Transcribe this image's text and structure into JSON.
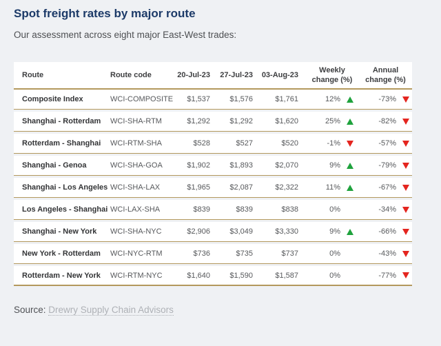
{
  "page": {
    "title": "Spot freight rates by major route",
    "subtitle": "Our assessment across eight major East-West trades:",
    "source_label": "Source:",
    "source_link": "Drewry Supply Chain Advisors"
  },
  "colors": {
    "title_navy": "#1c3a68",
    "gold_border": "#b3985c",
    "trend_up_green": "#1fa23d",
    "trend_down_red": "#e4251f",
    "page_background": "#eff1f4"
  },
  "chart_data": {
    "type": "table",
    "title": "Spot freight rates by major route",
    "columns": [
      "Route",
      "Route code",
      "20-Jul-23",
      "27-Jul-23",
      "03-Aug-23",
      "Weekly change (%)",
      "Annual change (%)"
    ],
    "rows": [
      {
        "route": "Composite Index",
        "code": "WCI-COMPOSITE",
        "jul20": "$1,537",
        "jul27": "$1,576",
        "aug03": "$1,761",
        "weekly": "12%",
        "weekly_trend": "up",
        "annual": "-73%",
        "annual_trend": "down"
      },
      {
        "route": "Shanghai - Rotterdam",
        "code": "WCI-SHA-RTM",
        "jul20": "$1,292",
        "jul27": "$1,292",
        "aug03": "$1,620",
        "weekly": "25%",
        "weekly_trend": "up",
        "annual": "-82%",
        "annual_trend": "down"
      },
      {
        "route": "Rotterdam - Shanghai",
        "code": "WCI-RTM-SHA",
        "jul20": "$528",
        "jul27": "$527",
        "aug03": "$520",
        "weekly": "-1%",
        "weekly_trend": "down",
        "annual": "-57%",
        "annual_trend": "down"
      },
      {
        "route": "Shanghai - Genoa",
        "code": "WCI-SHA-GOA",
        "jul20": "$1,902",
        "jul27": "$1,893",
        "aug03": "$2,070",
        "weekly": "9%",
        "weekly_trend": "up",
        "annual": "-79%",
        "annual_trend": "down"
      },
      {
        "route": "Shanghai - Los Angeles",
        "code": "WCI-SHA-LAX",
        "jul20": "$1,965",
        "jul27": "$2,087",
        "aug03": "$2,322",
        "weekly": "11%",
        "weekly_trend": "up",
        "annual": "-67%",
        "annual_trend": "down"
      },
      {
        "route": "Los Angeles - Shanghai",
        "code": "WCI-LAX-SHA",
        "jul20": "$839",
        "jul27": "$839",
        "aug03": "$838",
        "weekly": "0%",
        "weekly_trend": "none",
        "annual": "-34%",
        "annual_trend": "down"
      },
      {
        "route": "Shanghai - New York",
        "code": "WCI-SHA-NYC",
        "jul20": "$2,906",
        "jul27": "$3,049",
        "aug03": "$3,330",
        "weekly": "9%",
        "weekly_trend": "up",
        "annual": "-66%",
        "annual_trend": "down"
      },
      {
        "route": "New York - Rotterdam",
        "code": "WCI-NYC-RTM",
        "jul20": "$736",
        "jul27": "$735",
        "aug03": "$737",
        "weekly": "0%",
        "weekly_trend": "none",
        "annual": "-43%",
        "annual_trend": "down"
      },
      {
        "route": "Rotterdam - New York",
        "code": "WCI-RTM-NYC",
        "jul20": "$1,640",
        "jul27": "$1,590",
        "aug03": "$1,587",
        "weekly": "0%",
        "weekly_trend": "none",
        "annual": "-77%",
        "annual_trend": "down"
      }
    ]
  }
}
